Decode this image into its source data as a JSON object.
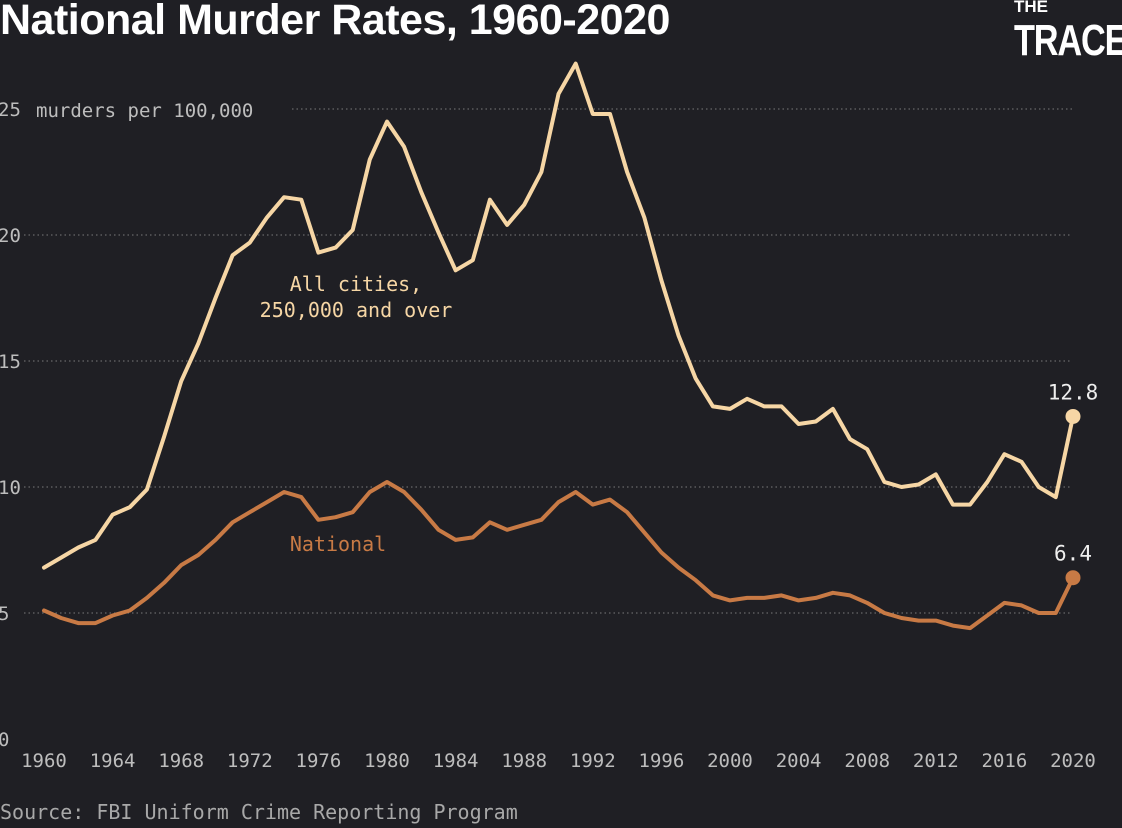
{
  "header": {
    "title": "National Murder Rates, 1960-2020"
  },
  "logo": {
    "line1": "THE",
    "line2": "TRACE"
  },
  "source": "Source: FBI Uniform Crime Reporting Program",
  "colors": {
    "cities": "#f6d6a5",
    "national": "#c87a45",
    "background": "#1f1f24",
    "grid": "#7a7a7a",
    "axis_text": "#bdbdbd"
  },
  "chart_data": {
    "type": "line",
    "title": "National Murder Rates, 1960-2020",
    "ylabel": "murders per 100,000",
    "xlabel": "",
    "xlim": [
      1960,
      2020
    ],
    "ylim": [
      0,
      25
    ],
    "x_ticks": [
      1960,
      1964,
      1968,
      1972,
      1976,
      1980,
      1984,
      1988,
      1992,
      1996,
      2000,
      2004,
      2008,
      2012,
      2016,
      2020
    ],
    "y_ticks": [
      0,
      5,
      10,
      15,
      20,
      25
    ],
    "x": [
      1960,
      1961,
      1962,
      1963,
      1964,
      1965,
      1966,
      1967,
      1968,
      1969,
      1970,
      1971,
      1972,
      1973,
      1974,
      1975,
      1976,
      1977,
      1978,
      1979,
      1980,
      1981,
      1982,
      1983,
      1984,
      1985,
      1986,
      1987,
      1988,
      1989,
      1990,
      1991,
      1992,
      1993,
      1994,
      1995,
      1996,
      1997,
      1998,
      1999,
      2000,
      2001,
      2002,
      2003,
      2004,
      2005,
      2006,
      2007,
      2008,
      2009,
      2010,
      2011,
      2012,
      2013,
      2014,
      2015,
      2016,
      2017,
      2018,
      2019,
      2020
    ],
    "series": [
      {
        "name": "All cities, 250,000 and over",
        "label_line1": "All cities,",
        "label_line2": "250,000 and over",
        "values": [
          6.8,
          7.2,
          7.6,
          7.9,
          8.9,
          9.2,
          9.9,
          12,
          14.2,
          15.7,
          17.5,
          19.2,
          19.7,
          20.7,
          21.5,
          21.4,
          19.3,
          19.5,
          20.2,
          23,
          24.5,
          23.5,
          21.7,
          20.1,
          18.6,
          19,
          21.4,
          20.4,
          21.2,
          22.5,
          25.6,
          26.8,
          24.8,
          24.8,
          22.5,
          20.7,
          18.2,
          16,
          14.3,
          13.2,
          13.1,
          13.5,
          13.2,
          13.2,
          12.5,
          12.6,
          13.1,
          11.9,
          11.5,
          10.2,
          10,
          10.1,
          10.5,
          9.3,
          9.3,
          10.2,
          11.3,
          11,
          10,
          9.6,
          12.8
        ],
        "end_label": "12.8"
      },
      {
        "name": "National",
        "label_line1": "National",
        "values": [
          5.1,
          4.8,
          4.6,
          4.6,
          4.9,
          5.1,
          5.6,
          6.2,
          6.9,
          7.3,
          7.9,
          8.6,
          9,
          9.4,
          9.8,
          9.6,
          8.7,
          8.8,
          9,
          9.8,
          10.2,
          9.8,
          9.1,
          8.3,
          7.9,
          8,
          8.6,
          8.3,
          8.5,
          8.7,
          9.4,
          9.8,
          9.3,
          9.5,
          9,
          8.2,
          7.4,
          6.8,
          6.3,
          5.7,
          5.5,
          5.6,
          5.6,
          5.7,
          5.5,
          5.6,
          5.8,
          5.7,
          5.4,
          5,
          4.8,
          4.7,
          4.7,
          4.5,
          4.4,
          4.9,
          5.4,
          5.3,
          5,
          5,
          6.4
        ],
        "end_label": "6.4"
      }
    ]
  }
}
